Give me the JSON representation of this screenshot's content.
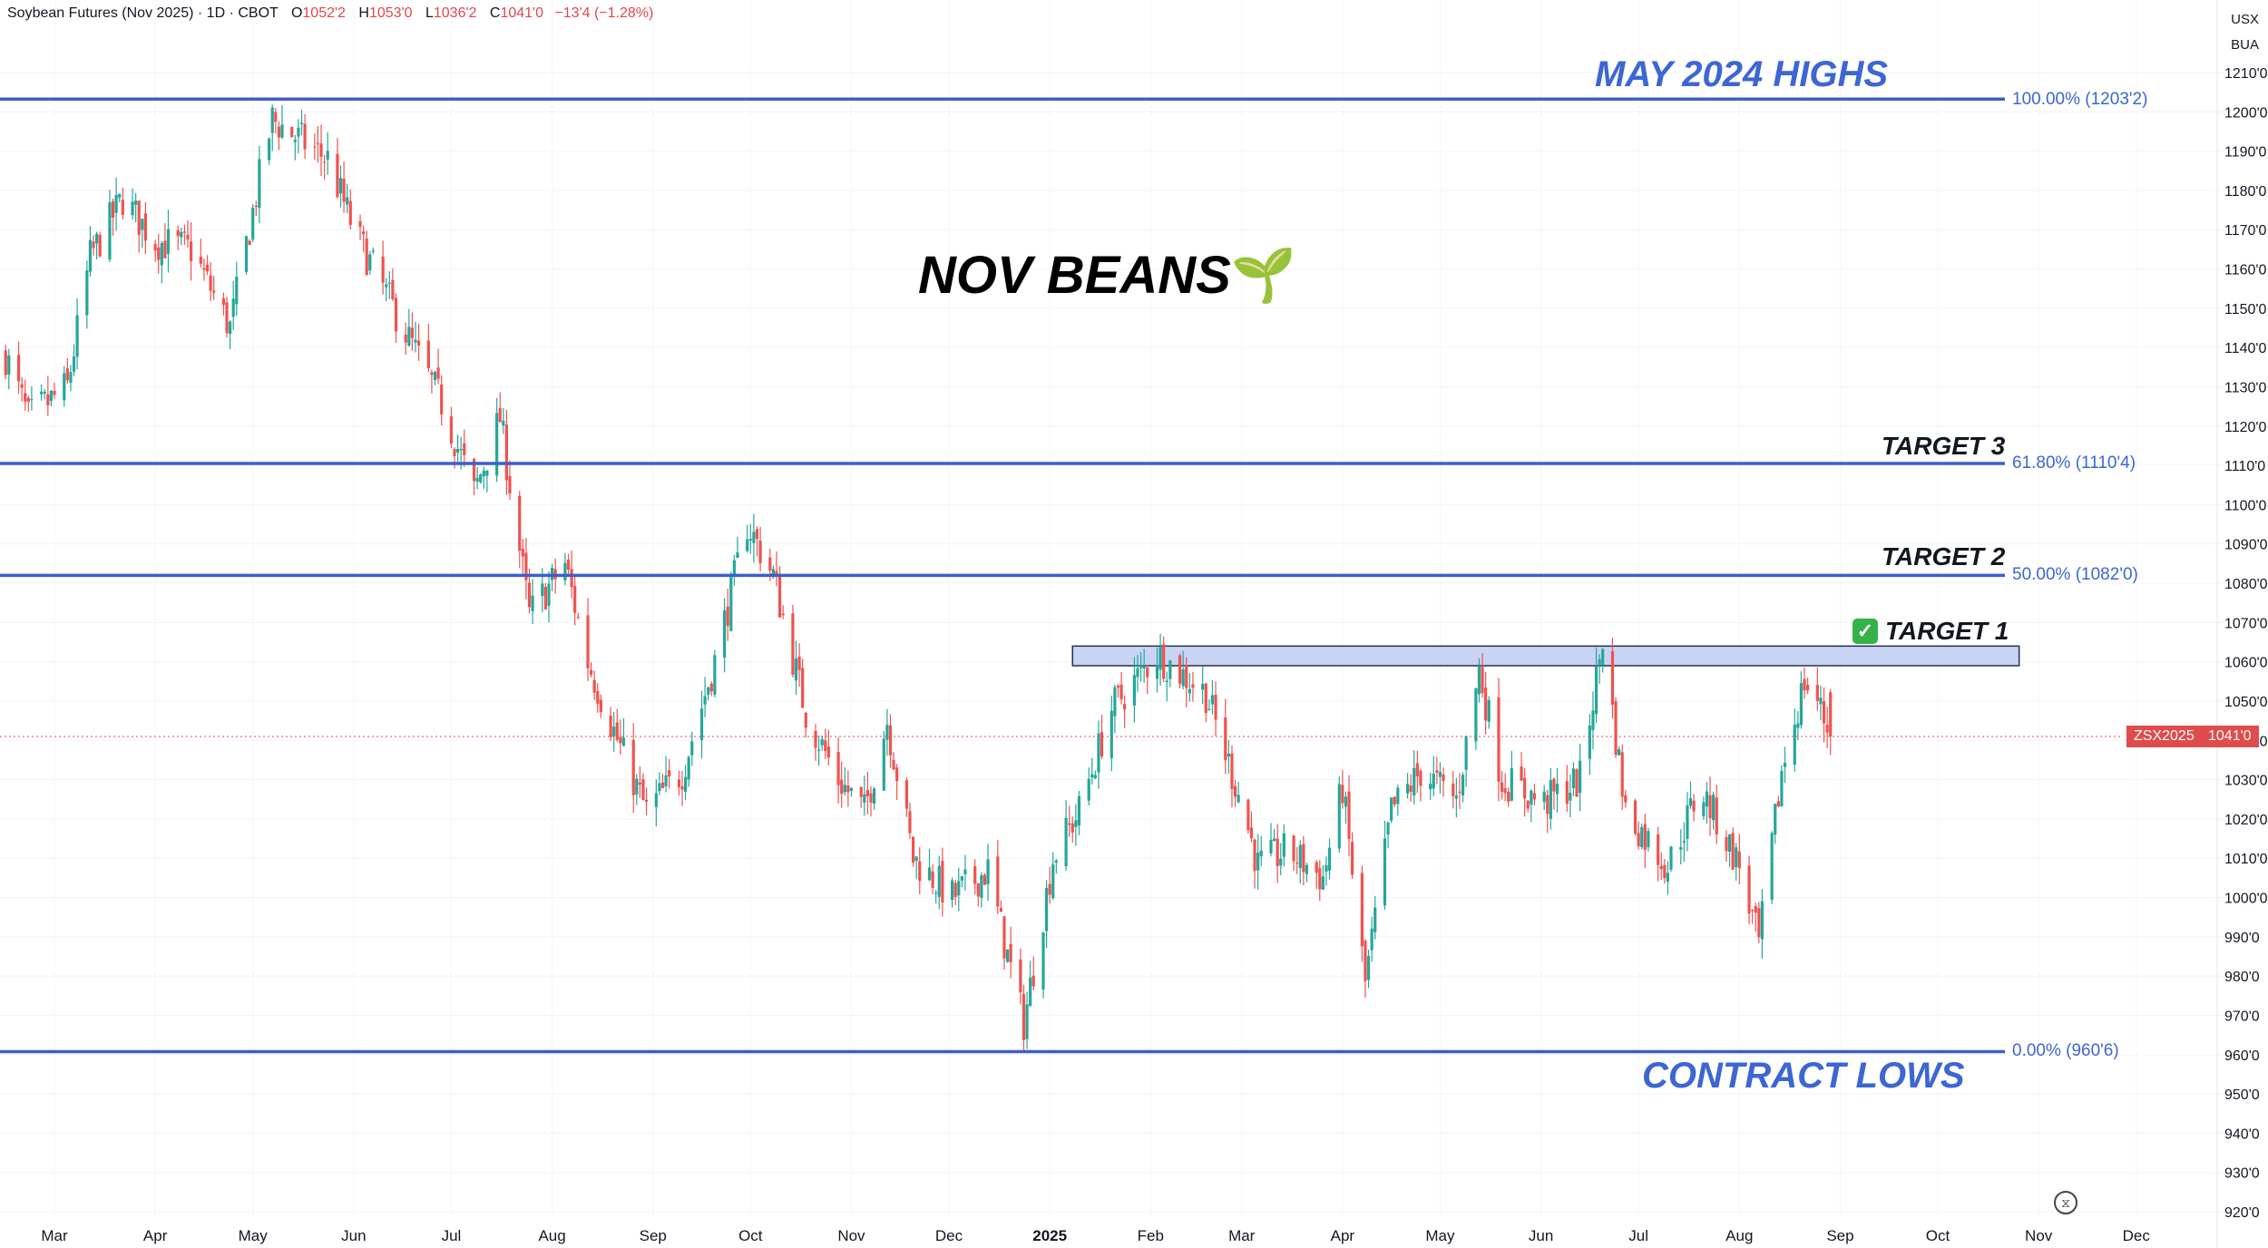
{
  "header": {
    "symbol": "Soybean Futures (Nov 2025) · 1D · CBOT",
    "open_label": "O",
    "open": "1052'2",
    "high_label": "H",
    "high": "1053'0",
    "low_label": "L",
    "low": "1036'2",
    "close_label": "C",
    "close": "1041'0",
    "change": "−13'4 (−1.28%)"
  },
  "currency": "USX",
  "unit": "BUA",
  "title": "NOV BEANS",
  "title_icon": "seedling-icon",
  "annotations": {
    "may_highs": "MAY 2024 HIGHS",
    "contract_lows": "CONTRACT LOWS",
    "target1": "TARGET 1",
    "target2": "TARGET 2",
    "target3": "TARGET 3"
  },
  "fib_levels": [
    {
      "label": "100.00% (1203'2)",
      "price": 1203.25
    },
    {
      "label": "61.80% (1110'4)",
      "price": 1110.5
    },
    {
      "label": "50.00% (1082'0)",
      "price": 1082
    },
    {
      "label": "0.00% (960'6)",
      "price": 960.75
    }
  ],
  "last_price": {
    "symbol": "ZSX2025",
    "value": "1041'0",
    "price": 1041
  },
  "colors": {
    "up": "#26a69a",
    "down": "#ef5350",
    "line": "#3d5fc6",
    "zone": "#c9d4f5"
  },
  "chart_data": {
    "type": "candlestick",
    "y_axis": {
      "min": 918,
      "max": 1214,
      "ticks": [
        "1210'0",
        "1200'0",
        "1190'0",
        "1180'0",
        "1170'0",
        "1160'0",
        "1150'0",
        "1140'0",
        "1130'0",
        "1120'0",
        "1110'0",
        "1100'0",
        "1090'0",
        "1080'0",
        "1070'0",
        "1060'0",
        "1050'0",
        "1040'0",
        "1030'0",
        "1020'0",
        "1010'0",
        "1000'0",
        "990'0",
        "980'0",
        "970'0",
        "960'0",
        "950'0",
        "940'0",
        "930'0",
        "920'0"
      ]
    },
    "x_axis": {
      "ticks": [
        "Mar",
        "Apr",
        "May",
        "Jun",
        "Jul",
        "Aug",
        "Sep",
        "Oct",
        "Nov",
        "Dec",
        "2025",
        "Feb",
        "Mar",
        "Apr",
        "May",
        "Jun",
        "Jul",
        "Aug",
        "Sep",
        "Oct",
        "Nov",
        "Dec"
      ]
    },
    "resistance_zone": {
      "low": 1059,
      "high": 1064,
      "from": "2025-01-08",
      "to": "2025-10-26"
    },
    "anchor_points": [
      [
        "2024-02-15",
        1138
      ],
      [
        "2024-02-22",
        1122
      ],
      [
        "2024-03-05",
        1130
      ],
      [
        "2024-03-12",
        1163
      ],
      [
        "2024-03-22",
        1178
      ],
      [
        "2024-04-01",
        1167
      ],
      [
        "2024-04-12",
        1165
      ],
      [
        "2024-04-24",
        1145
      ],
      [
        "2024-05-03",
        1183
      ],
      [
        "2024-05-07",
        1198
      ],
      [
        "2024-05-17",
        1192
      ],
      [
        "2024-05-24",
        1188
      ],
      [
        "2024-06-01",
        1170
      ],
      [
        "2024-06-15",
        1147
      ],
      [
        "2024-06-28",
        1126
      ],
      [
        "2024-07-08",
        1103
      ],
      [
        "2024-07-16",
        1122
      ],
      [
        "2024-07-25",
        1072
      ],
      [
        "2024-08-05",
        1085
      ],
      [
        "2024-08-12",
        1060
      ],
      [
        "2024-08-22",
        1038
      ],
      [
        "2024-08-30",
        1022
      ],
      [
        "2024-09-10",
        1032
      ],
      [
        "2024-09-20",
        1060
      ],
      [
        "2024-09-30",
        1095
      ],
      [
        "2024-10-08",
        1082
      ],
      [
        "2024-10-18",
        1047
      ],
      [
        "2024-10-28",
        1030
      ],
      [
        "2024-11-05",
        1022
      ],
      [
        "2024-11-12",
        1045
      ],
      [
        "2024-11-20",
        1010
      ],
      [
        "2024-12-02",
        1000
      ],
      [
        "2024-12-13",
        1007
      ],
      [
        "2024-12-19",
        985
      ],
      [
        "2024-12-24",
        968
      ],
      [
        "2025-01-02",
        1010
      ],
      [
        "2025-01-10",
        1022
      ],
      [
        "2025-01-20",
        1048
      ],
      [
        "2025-02-03",
        1062
      ],
      [
        "2025-02-18",
        1052
      ],
      [
        "2025-03-01",
        1024
      ],
      [
        "2025-03-06",
        1008
      ],
      [
        "2025-03-15",
        1012
      ],
      [
        "2025-03-26",
        1005
      ],
      [
        "2025-04-01",
        1028
      ],
      [
        "2025-04-08",
        978
      ],
      [
        "2025-04-16",
        1022
      ],
      [
        "2025-04-25",
        1032
      ],
      [
        "2025-05-06",
        1025
      ],
      [
        "2025-05-13",
        1058
      ],
      [
        "2025-05-20",
        1030
      ],
      [
        "2025-06-02",
        1024
      ],
      [
        "2025-06-13",
        1030
      ],
      [
        "2025-06-20",
        1066
      ],
      [
        "2025-06-27",
        1022
      ],
      [
        "2025-07-10",
        1008
      ],
      [
        "2025-07-20",
        1028
      ],
      [
        "2025-08-01",
        1008
      ],
      [
        "2025-08-07",
        988
      ],
      [
        "2025-08-14",
        1032
      ],
      [
        "2025-08-21",
        1055
      ],
      [
        "2025-08-25",
        1050
      ],
      [
        "2025-08-29",
        1041
      ]
    ],
    "last_candle": {
      "date": "2025-08-29",
      "open": 1052.25,
      "high": 1053,
      "low": 1036.25,
      "close": 1041
    }
  }
}
